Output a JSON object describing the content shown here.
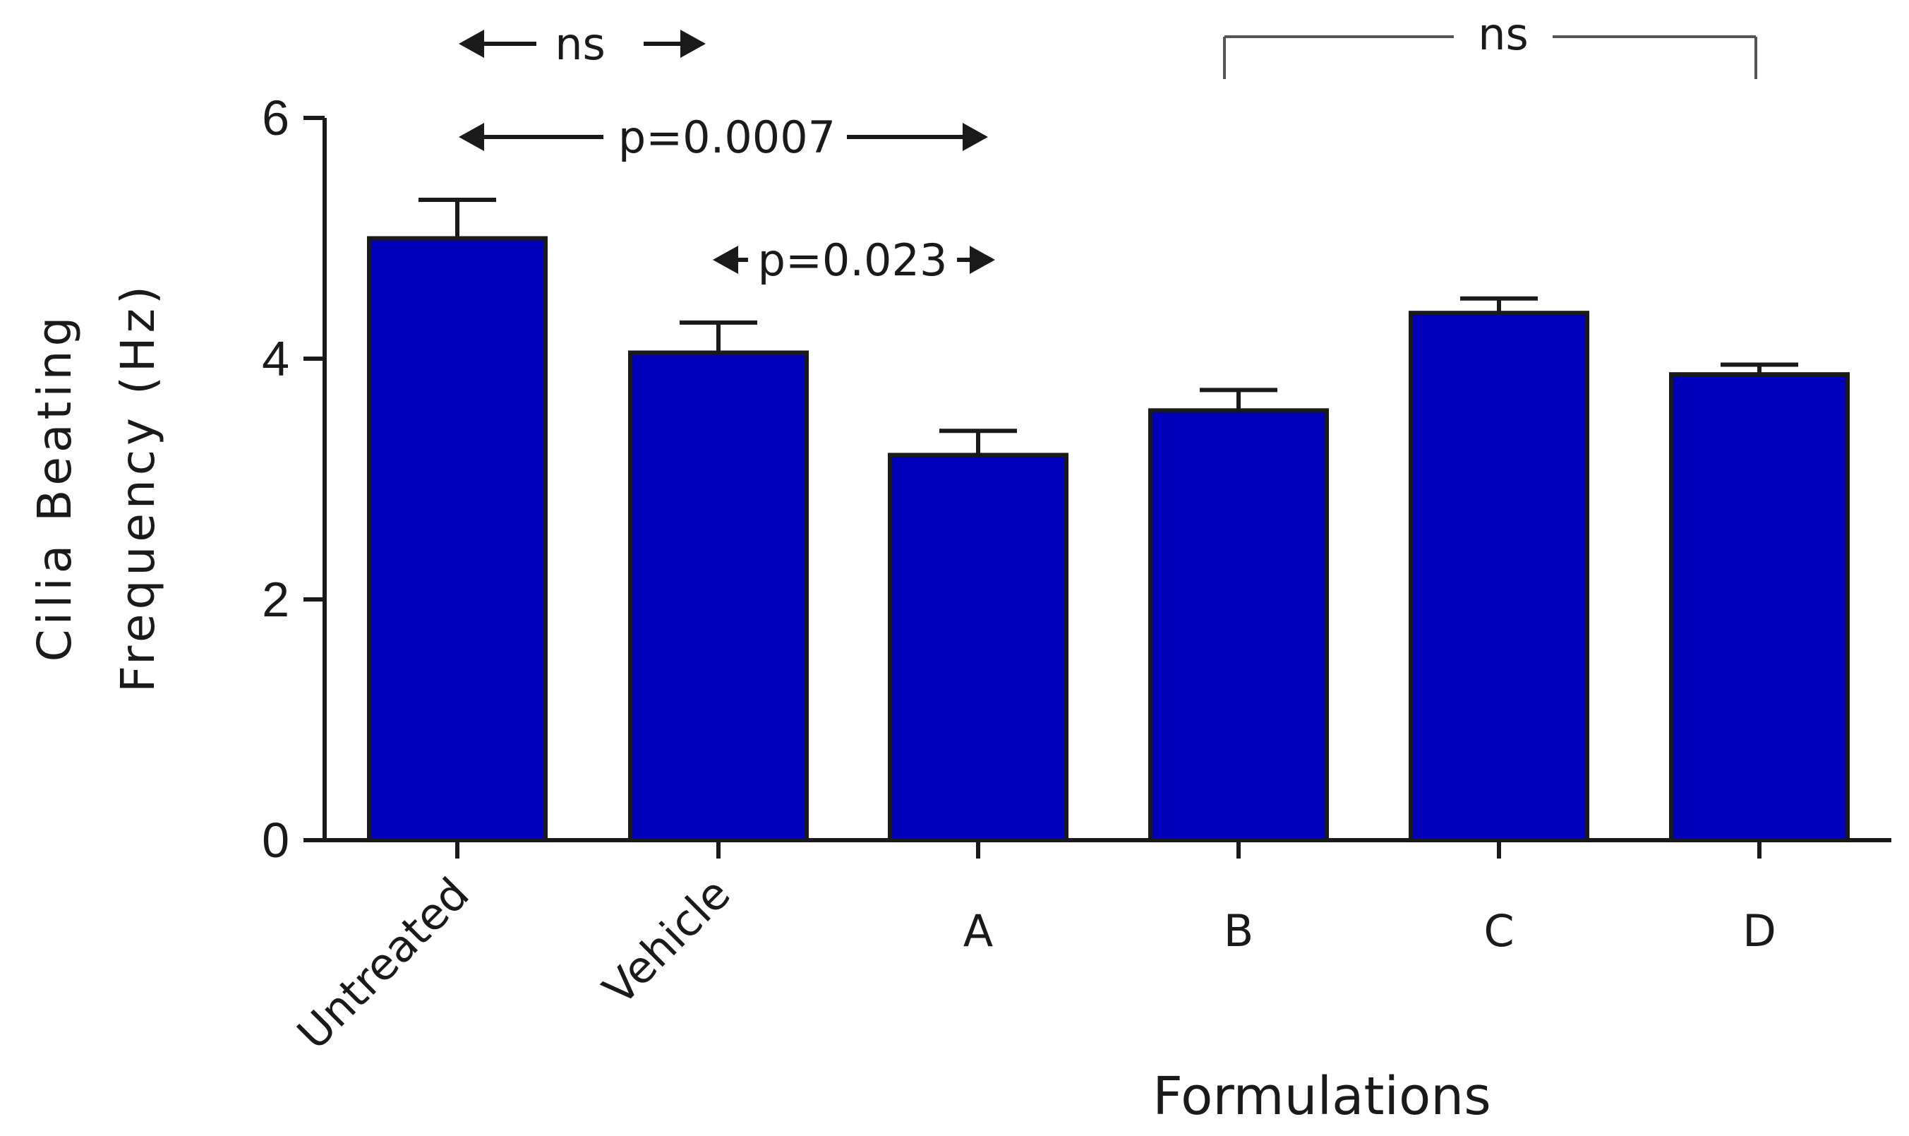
{
  "chart_data": {
    "type": "bar",
    "title": "",
    "xlabel": "Formulations",
    "ylabel_lines": [
      "Cilia Beating",
      "Frequency (Hz)"
    ],
    "categories": [
      "Untreated",
      "Vehicle",
      "A",
      "B",
      "C",
      "D"
    ],
    "values": [
      5.0,
      4.05,
      3.2,
      3.57,
      4.38,
      3.87
    ],
    "errors": [
      0.32,
      0.25,
      0.2,
      0.17,
      0.12,
      0.08
    ],
    "ylim": [
      0,
      6
    ],
    "yticks": [
      "0",
      "2",
      "4",
      "6"
    ],
    "bar_color": "#0000bb",
    "annotations": [
      {
        "text": "ns",
        "from": "Untreated",
        "to": "Vehicle",
        "style": "arrows-top"
      },
      {
        "text": "p=0.0007",
        "from": "Untreated",
        "to": "A",
        "style": "arrows"
      },
      {
        "text": "p=0.023",
        "from": "Vehicle",
        "to": "A",
        "style": "arrows"
      },
      {
        "text": "ns",
        "from": "B",
        "to": "D",
        "style": "bracket"
      }
    ]
  }
}
